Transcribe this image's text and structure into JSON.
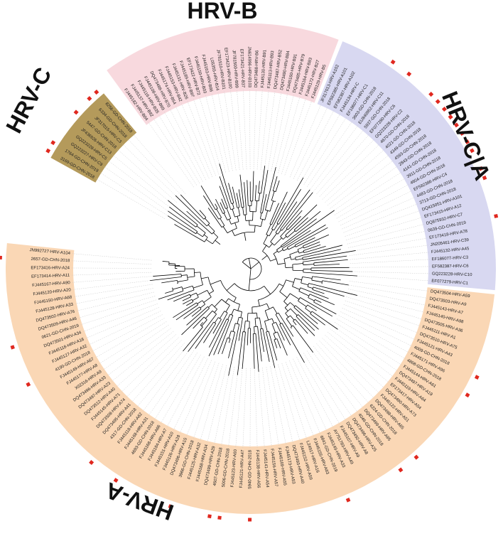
{
  "colors": {
    "hrv_b": "#f8d9de",
    "hrv_c": "#b49a5b",
    "hrv_ca": "#d8d8f1",
    "hrv_a": "#fad7b5",
    "marker": "#e0281f",
    "branch": "#000000",
    "leader": "#c8c8c8"
  },
  "clades": [
    {
      "id": "hrv-b",
      "label": "HRV-B",
      "color_key": "hrv_b",
      "leaves": [
        "FJ445182-HRV-B04",
        "FJ445137-HRV-B92",
        "FJ445116-HRV-B35",
        "FJ445108-HRV-B69",
        "DQ473488-HRV-B70",
        "FJ445174-HRV-B54",
        "FJ445153-HRV-B42",
        "FJ445131-HRV-B26",
        "FJ445189-HRV-B97",
        "EF173422-HRV-B72",
        "FJ445150-HRV-B03",
        "FJ445163-HRV-B86",
        "L05355-HRV-B14",
        "JF781510-HRV-B101",
        "EF173423-HRV-B100",
        "JF781500-HRV-B99",
        "EF173421-HRV-B37",
        "JN614996-HRV-B103",
        "DQ473488-HRV-B6",
        "FJ445130-HRV-B91",
        "FJ445113-HRV-B93",
        "DQ473487-HRV-B52",
        "DQ473490-HRV-B84",
        "FJ445160-HRV-B91",
        "DQ473485-HRV-B79",
        "FJ445164-HRV-B83",
        "FJ445172-HRV-B27",
        "FJ445129-HRV-B5"
      ]
    },
    {
      "id": "hrv-ca",
      "label": "HRV-C|A",
      "color_key": "hrv_ca",
      "leaves": [
        "JF317013-HRV-A102",
        "EF582385-HRV-A101",
        "EF582387-HRV-A102",
        "FJ445134-HRV-C",
        "EF186077-HRV-C1",
        "3603-GD-CHN-2018",
        "EU840952-HRV-C11",
        "5937-GD-CHN-2018",
        "EF077280-HRV-C6",
        "GQ223228-HRV-C2",
        "4670-GD-CHN-2018",
        "4021-GD-CHN-2018",
        "4349-GD-CHN-2018",
        "4593-GD-CHN-2018",
        "2843-GD-CHN-2018",
        "4141-GD-CHN-2018",
        "3911-GD-CHN-2018",
        "4604-GD-CHN-2018",
        "EF582386-HRV-C4",
        "4483-GD-CHN-2018",
        "3713-GD-CHN-2018",
        "DQ415051-HRV-A101",
        "EF173415-HRV-A12",
        "DQ875932-HRV-C7",
        "0639-GD-CHN-2019",
        "EF173418-HRV-A78",
        "JN205461-HRV-C39",
        "FJ445132-HRV-A45",
        "EF186077-HRV-C3",
        "EF582387-HRV-C6",
        "GQ223228-HRV-C10",
        "EF077279-HRV-C1"
      ]
    },
    {
      "id": "hrv-a",
      "label": "HRV-A",
      "color_key": "hrv_a",
      "leaves": [
        "DQ473504-HRV-A59",
        "DQ473503-HRV-A9",
        "FJ445143-HRV-A7",
        "FJ445140-HRV-A98",
        "DQ473505-HRV-A36",
        "FJ445111-HRV-A1",
        "DQ473510-HRV-A75",
        "FJ445121-HRV-A43",
        "4009-GD-CHN-2018",
        "FJ445171-HRV-A96",
        "4868-GD-CHN-2018",
        "FJ445144-HRV-A61",
        "DQ473497-HRV-A19",
        "FJ445119-HRV-A64",
        "EF173417-HRV-A54",
        "DQ473490-HRV-A73",
        "FJ445122-HRV-A51",
        "DQ473498-HRV-A65",
        "6224-GD-CHN-2018",
        "DQ473499-HRV-A95",
        "4046-GD-CHN-2018",
        "DQ473496-HRV-A25",
        "DQ473492-HRV-A8",
        "FJ445107-HRV-A9",
        "AY751783-HRV-A49",
        "FJ445149-HRV-A33",
        "6841-GD-CHN-2019",
        "FJ445155-HRV-A63",
        "L24917-HRV-A16",
        "FJ445152-HRV-A59",
        "DQ473493-HRV-A40",
        "FJ445173-HRV-A53",
        "FJ445169-HRV-A55",
        "FJ445156-HRV-A57",
        "FJ445141-HRV-A54",
        "FJ445138-HRV-A56",
        "5940-GD-CHN-2018",
        "FJ445121-HRV-A47",
        "FJ445123-HRV-A60",
        "5006-GD-CHN-2018",
        "4607-GD-CHN-2018",
        "DQ473499-HRV-A29",
        "FJ445168-HRV-A34",
        "FJ445125-HRV-A32",
        "3966-GD-CHN-2018",
        "DQ473496-HRV-A15",
        "FJ445126-HRV-A28",
        "FJ445151-HRV-A10",
        "FJ445184-HRV-A7",
        "FJ445168-HRV-A66",
        "4693-GD-CHN-2018",
        "FJ445168-HRV-A31",
        "FJ445118-HRV-A62",
        "4317-GD-CHN-2018",
        "DQ473495-HRV-A41",
        "DQ473508-HRV-A74",
        "FJ445145-HRV-A71",
        "DQ473512-HRV-A40",
        "DQ473497-HRV-A23",
        "DQ473496-HRV-A33",
        "X02316-HRV-A9",
        "FJ445177-HRV-A8",
        "FJ445149-HRV-A67",
        "4190-GD-CHN-2018",
        "FJ445127-HRV-A32",
        "FJ445118-HRV-A18",
        "DQ473501-HRV-A34",
        "0621-GD-CHN-2019",
        "DQ473509-HRV-A46",
        "DQ473502-HRV-A76",
        "FJ445128-HRV-A33",
        "FJ445150-HRV-A68",
        "FJ445120-HRV-A20",
        "FJ445167-HRV-A90",
        "EF173414-HRV-A11",
        "EF173416-HRV-A24",
        "2657-GD-CHN-2018",
        "JN992727-HRV-A104"
      ]
    },
    {
      "id": "hrv-c",
      "label": "HRV-C",
      "color_key": "hrv_c",
      "leaves": [
        "3169-GD-CHN-2018",
        "1764-GD-CHN-2019",
        "GQ223227-HRV-C9",
        "GQ223228-HRV-C5",
        "JF436926-HRV-C13",
        "5447-GD-CHN-2018",
        "JF317015-HRV-C3",
        "6334-GD-CHN-2018",
        "8256-GD-CHN-2018"
      ]
    }
  ]
}
